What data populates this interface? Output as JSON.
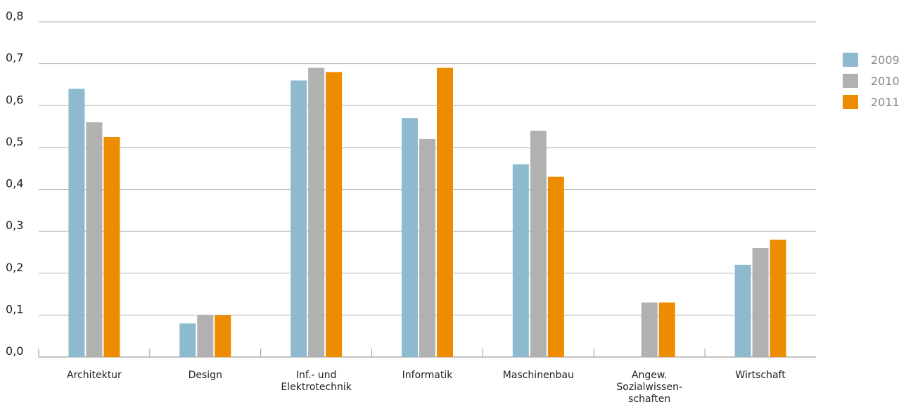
{
  "chart_data": {
    "type": "bar",
    "categories": [
      [
        "Architektur"
      ],
      [
        "Design"
      ],
      [
        "Inf.- und",
        "Elektrotechnik"
      ],
      [
        "Informatik"
      ],
      [
        "Maschinenbau"
      ],
      [
        "Angew.",
        "Sozialwissen-",
        "schaften"
      ],
      [
        "Wirtschaft"
      ]
    ],
    "series": [
      {
        "name": "2009",
        "color": "#8dbacf",
        "values": [
          0.64,
          0.08,
          0.66,
          0.57,
          0.46,
          null,
          0.22
        ]
      },
      {
        "name": "2010",
        "color": "#b1b1b1",
        "values": [
          0.56,
          0.1,
          0.69,
          0.52,
          0.54,
          0.13,
          0.26
        ]
      },
      {
        "name": "2011",
        "color": "#ee8c00",
        "values": [
          0.525,
          0.1,
          0.68,
          0.69,
          0.43,
          0.13,
          0.28
        ]
      }
    ],
    "yticks": [
      "0,0",
      "0,1",
      "0,2",
      "0,3",
      "0,4",
      "0,5",
      "0,6",
      "0,7",
      "0,8"
    ],
    "ylim": [
      0,
      0.8
    ],
    "grid": true,
    "legend_position": "right"
  }
}
